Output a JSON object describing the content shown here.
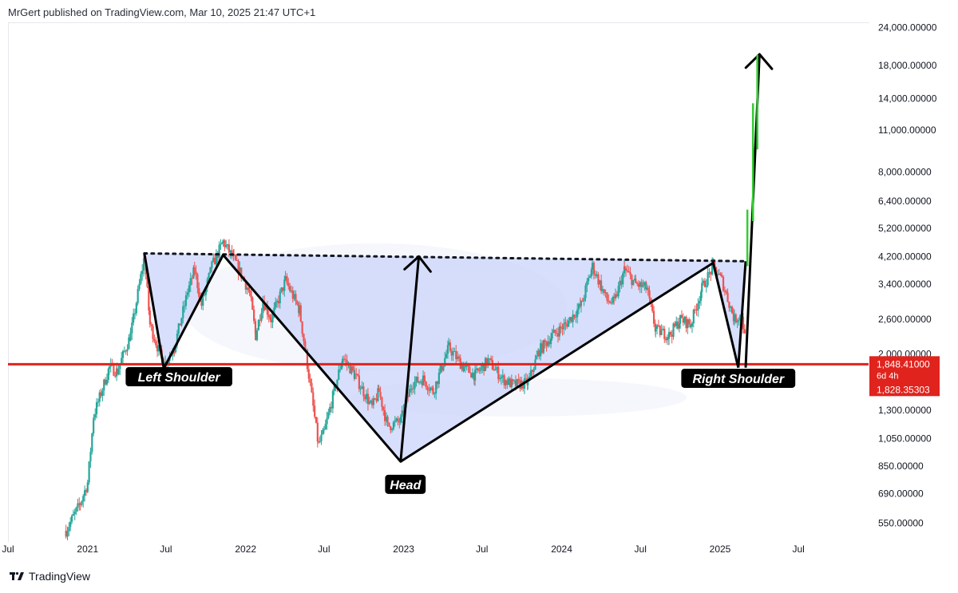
{
  "header": {
    "publisher_line": "MrGert published on TradingView.com, Mar 10, 2025 21:47 UTC+1"
  },
  "footer": {
    "logo_icon": "tradingview-logo-icon",
    "brand": "TradingView"
  },
  "colors": {
    "up": "#26a69a",
    "down": "#ef5350",
    "neckline": "#e0231d",
    "pattern_fill": "#c9d4fb",
    "projection": "#000000",
    "breakout": "#33cc33"
  },
  "chart_data": {
    "type": "candlestick",
    "y_scale": "log",
    "ylim": [
      480,
      25000
    ],
    "y_ticks": [
      24000,
      18000,
      14000,
      11000,
      8000,
      6400,
      5200,
      4200,
      3400,
      2600,
      2000,
      1300,
      1050,
      850,
      690,
      550
    ],
    "y_tick_labels": [
      "24,000.00000",
      "18,000.00000",
      "14,000.00000",
      "11,000.00000",
      "8,000.00000",
      "6,400.00000",
      "5,200.00000",
      "4,200.00000",
      "3,400.00000",
      "2,600.00000",
      "2,000.00000",
      "1,300.00000",
      "1,050.00000",
      "850.00000",
      "690.00000",
      "550.00000"
    ],
    "x_ticks": [
      "Jul",
      "2021",
      "Jul",
      "2022",
      "Jul",
      "2023",
      "Jul",
      "2024",
      "Jul",
      "2025",
      "Jul"
    ],
    "x_tick_dates": [
      "2020-07-01",
      "2021-01-01",
      "2021-07-01",
      "2022-01-01",
      "2022-07-01",
      "2023-01-01",
      "2023-07-01",
      "2024-01-01",
      "2024-07-01",
      "2025-01-01",
      "2025-07-01"
    ],
    "xlim": [
      "2020-07-01",
      "2025-12-10"
    ],
    "price_label": {
      "price": "1,848.41000",
      "countdown": "6d 4h",
      "low": "1,828.35303"
    },
    "neckline_price": 1848,
    "resistance_line": {
      "from": [
        "2021-05-12",
        4300
      ],
      "to": [
        "2025-03-01",
        4050
      ]
    },
    "pattern": {
      "points": [
        {
          "date": "2021-05-12",
          "price": 4300
        },
        {
          "date": "2021-06-26",
          "price": 1790
        },
        {
          "date": "2021-11-10",
          "price": 4250
        },
        {
          "date": "2022-12-25",
          "price": 880
        },
        {
          "date": "2024-12-16",
          "price": 4000
        },
        {
          "date": "2025-02-12",
          "price": 1800
        },
        {
          "date": "2025-03-01",
          "price": 4050
        }
      ],
      "labels": [
        {
          "text": "Left Shoulder",
          "date": "2021-07-31",
          "price": 1680
        },
        {
          "text": "Head",
          "date": "2023-01-05",
          "price": 740
        },
        {
          "text": "Right Shoulder",
          "date": "2025-02-12",
          "price": 1660
        }
      ],
      "projections": [
        {
          "from": [
            "2022-12-25",
            880
          ],
          "to": [
            "2023-02-05",
            4200
          ]
        },
        {
          "from": [
            "2025-03-01",
            1800
          ],
          "to": [
            "2025-04-02",
            19600
          ]
        }
      ],
      "breakout_bars": [
        {
          "date": "2025-03-05",
          "open": 3900,
          "close": 6000
        },
        {
          "date": "2025-03-18",
          "open": 5500,
          "close": 13500
        },
        {
          "date": "2025-03-28",
          "open": 9500,
          "close": 19500
        }
      ]
    },
    "series": [
      {
        "name": "",
        "path": [
          [
            "2020-11-12",
            520
          ],
          [
            "2020-12-15",
            640
          ],
          [
            "2021-01-01",
            750
          ],
          [
            "2021-01-15",
            1250
          ],
          [
            "2021-02-20",
            1800
          ],
          [
            "2021-03-10",
            1750
          ],
          [
            "2021-04-10",
            2300
          ],
          [
            "2021-05-12",
            4200
          ],
          [
            "2021-05-25",
            2500
          ],
          [
            "2021-06-26",
            1830
          ],
          [
            "2021-07-20",
            2100
          ],
          [
            "2021-08-20",
            3200
          ],
          [
            "2021-09-05",
            3800
          ],
          [
            "2021-09-21",
            2900
          ],
          [
            "2021-10-15",
            3900
          ],
          [
            "2021-11-10",
            4700
          ],
          [
            "2021-12-05",
            4100
          ],
          [
            "2022-01-10",
            3200
          ],
          [
            "2022-01-24",
            2300
          ],
          [
            "2022-02-10",
            3000
          ],
          [
            "2022-03-01",
            2600
          ],
          [
            "2022-04-03",
            3500
          ],
          [
            "2022-05-05",
            2800
          ],
          [
            "2022-05-20",
            2000
          ],
          [
            "2022-06-18",
            1000
          ],
          [
            "2022-07-01",
            1100
          ],
          [
            "2022-08-13",
            1950
          ],
          [
            "2022-09-10",
            1700
          ],
          [
            "2022-10-20",
            1330
          ],
          [
            "2022-11-05",
            1500
          ],
          [
            "2022-11-25",
            1150
          ],
          [
            "2022-12-25",
            1200
          ],
          [
            "2023-01-20",
            1600
          ],
          [
            "2023-02-15",
            1650
          ],
          [
            "2023-03-10",
            1500
          ],
          [
            "2023-04-15",
            2100
          ],
          [
            "2023-05-20",
            1800
          ],
          [
            "2023-06-15",
            1700
          ],
          [
            "2023-07-15",
            1900
          ],
          [
            "2023-08-18",
            1650
          ],
          [
            "2023-09-10",
            1580
          ],
          [
            "2023-10-15",
            1600
          ],
          [
            "2023-11-10",
            2050
          ],
          [
            "2023-12-10",
            2300
          ],
          [
            "2024-01-10",
            2500
          ],
          [
            "2024-02-15",
            2900
          ],
          [
            "2024-03-12",
            3900
          ],
          [
            "2024-04-15",
            3000
          ],
          [
            "2024-05-01",
            2950
          ],
          [
            "2024-05-25",
            3800
          ],
          [
            "2024-06-20",
            3400
          ],
          [
            "2024-07-15",
            3300
          ],
          [
            "2024-08-05",
            2400
          ],
          [
            "2024-09-05",
            2300
          ],
          [
            "2024-10-01",
            2600
          ],
          [
            "2024-10-25",
            2500
          ],
          [
            "2024-11-20",
            3300
          ],
          [
            "2024-12-16",
            3900
          ],
          [
            "2025-01-05",
            3500
          ],
          [
            "2025-02-03",
            2600
          ],
          [
            "2025-02-20",
            2700
          ],
          [
            "2025-03-02",
            2100
          ]
        ]
      }
    ]
  }
}
